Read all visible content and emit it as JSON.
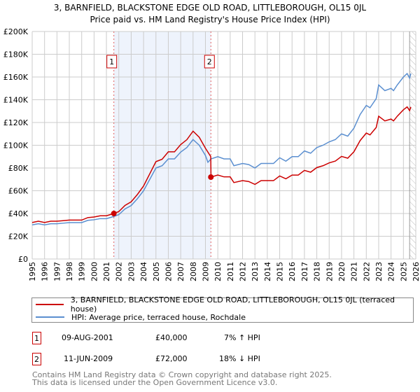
{
  "chart_data": {
    "type": "line",
    "title": "3, BARNFIELD, BLACKSTONE EDGE OLD ROAD, LITTLEBOROUGH, OL15 0JL",
    "subtitle": "Price paid vs. HM Land Registry's House Price Index (HPI)",
    "xlim": [
      1995,
      2026
    ],
    "ylim": [
      0,
      200000
    ],
    "x_ticks": [
      "1995",
      "1996",
      "1997",
      "1998",
      "1999",
      "2000",
      "2001",
      "2002",
      "2003",
      "2004",
      "2005",
      "2006",
      "2007",
      "2008",
      "2009",
      "2010",
      "2011",
      "2012",
      "2013",
      "2014",
      "2015",
      "2016",
      "2017",
      "2018",
      "2019",
      "2020",
      "2021",
      "2022",
      "2023",
      "2024",
      "2025",
      "2026"
    ],
    "y_ticks": [
      "£0",
      "£20K",
      "£40K",
      "£60K",
      "£80K",
      "£100K",
      "£120K",
      "£140K",
      "£160K",
      "£180K",
      "£200K"
    ],
    "grid": true,
    "shaded_range": [
      2001.6,
      2009.44
    ],
    "forecast_hatch_from": 2025.5,
    "series": [
      {
        "name": "3, BARNFIELD, BLACKSTONE EDGE OLD ROAD, LITTLEBOROUGH, OL15 0JL (terraced house)",
        "color": "#cc0000",
        "x": [
          1995,
          1995.5,
          1996,
          1996.5,
          1997,
          1997.5,
          1998,
          1998.5,
          1999,
          1999.5,
          2000,
          2000.5,
          2001,
          2001.6,
          2002,
          2002.5,
          2003,
          2003.5,
          2004,
          2004.5,
          2005,
          2005.5,
          2006,
          2006.5,
          2007,
          2007.5,
          2008,
          2008.5,
          2009,
          2009.43,
          2009.45,
          2010,
          2010.5,
          2011,
          2011.3,
          2012,
          2012.5,
          2013,
          2013.5,
          2014,
          2014.5,
          2015,
          2015.5,
          2016,
          2016.5,
          2017,
          2017.5,
          2018,
          2018.5,
          2019,
          2019.5,
          2020,
          2020.5,
          2021,
          2021.5,
          2022,
          2022.3,
          2022.8,
          2023,
          2023.5,
          2024,
          2024.2,
          2024.5,
          2025,
          2025.3,
          2025.5,
          2025.6
        ],
        "y": [
          32100,
          33200,
          32100,
          33200,
          33200,
          33700,
          34200,
          34200,
          34200,
          36400,
          36900,
          38000,
          38000,
          40000,
          41700,
          47100,
          50300,
          56700,
          64200,
          74900,
          85600,
          87700,
          94200,
          94200,
          100600,
          104900,
          112400,
          107000,
          97400,
          90000,
          72000,
          73800,
          72200,
          72200,
          67200,
          68900,
          68100,
          65600,
          68900,
          68900,
          68900,
          73000,
          70500,
          73800,
          73800,
          77900,
          76300,
          80400,
          82000,
          84500,
          86100,
          90200,
          88600,
          94300,
          104100,
          110700,
          109100,
          115600,
          125500,
          121400,
          123000,
          121400,
          125500,
          131200,
          133700,
          130400,
          133700
        ]
      },
      {
        "name": "HPI: Average price, terraced house, Rochdale",
        "color": "#5b8fd0",
        "x": [
          1995,
          1995.5,
          1996,
          1996.5,
          1997,
          1997.5,
          1998,
          1998.5,
          1999,
          1999.5,
          2000,
          2000.5,
          2001,
          2001.6,
          2002,
          2002.5,
          2003,
          2003.5,
          2004,
          2004.5,
          2005,
          2005.5,
          2006,
          2006.5,
          2007,
          2007.5,
          2008,
          2008.5,
          2009,
          2009.2,
          2009.45,
          2010,
          2010.5,
          2011,
          2011.3,
          2012,
          2012.5,
          2013,
          2013.5,
          2014,
          2014.5,
          2015,
          2015.5,
          2016,
          2016.5,
          2017,
          2017.5,
          2018,
          2018.5,
          2019,
          2019.5,
          2020,
          2020.5,
          2021,
          2021.5,
          2022,
          2022.3,
          2022.8,
          2023,
          2023.5,
          2024,
          2024.2,
          2024.5,
          2025,
          2025.3,
          2025.5,
          2025.6
        ],
        "y": [
          30000,
          31000,
          30000,
          31000,
          31000,
          31500,
          32000,
          32000,
          32000,
          34000,
          34500,
          35500,
          35500,
          37400,
          39000,
          44000,
          47000,
          53000,
          60000,
          70000,
          80000,
          82000,
          88000,
          88000,
          94000,
          98000,
          105000,
          100000,
          91000,
          85000,
          88000,
          90000,
          88000,
          88000,
          82000,
          84000,
          83000,
          80000,
          84000,
          84000,
          84000,
          89000,
          86000,
          90000,
          90000,
          95000,
          93000,
          98000,
          100000,
          103000,
          105000,
          110000,
          108000,
          115000,
          127000,
          135000,
          133000,
          141000,
          153000,
          148000,
          150000,
          148000,
          153000,
          160000,
          163000,
          159000,
          163000
        ]
      }
    ],
    "markers": [
      {
        "label": "1",
        "x": 2001.6,
        "y": 40000
      },
      {
        "label": "2",
        "x": 2009.44,
        "y": 72000
      }
    ]
  },
  "legend": {
    "red": "3, BARNFIELD, BLACKSTONE EDGE OLD ROAD, LITTLEBOROUGH, OL15 0JL (terraced house)",
    "blue": "HPI: Average price, terraced house, Rochdale"
  },
  "transactions": [
    {
      "num": "1",
      "date": "09-AUG-2001",
      "price": "£40,000",
      "hpi": "7% ↑ HPI"
    },
    {
      "num": "2",
      "date": "11-JUN-2009",
      "price": "£72,000",
      "hpi": "18% ↓ HPI"
    }
  ],
  "footer": [
    "Contains HM Land Registry data © Crown copyright and database right 2025.",
    "This data is licensed under the Open Government Licence v3.0."
  ]
}
